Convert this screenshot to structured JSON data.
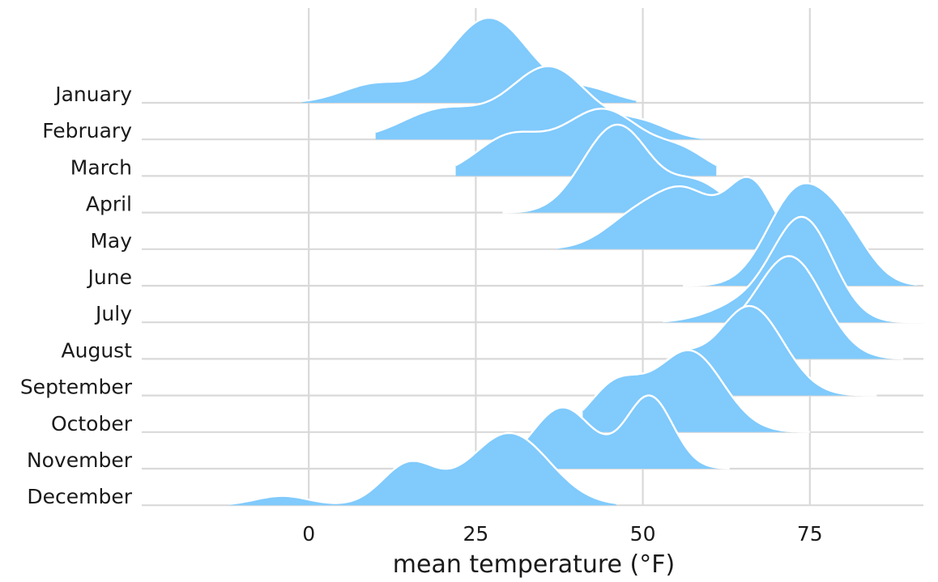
{
  "chart_data": {
    "type": "ridgeline",
    "title": "",
    "xlabel": "mean temperature (°F)",
    "ylabel": "",
    "xlim": [
      -25,
      92
    ],
    "x_ticks": [
      0,
      25,
      50,
      75
    ],
    "x_tick_labels": [
      "0",
      "25",
      "50",
      "75"
    ],
    "grid": "vertical",
    "fill_color": "#80CAFC",
    "outline_color": "#ffffff",
    "gridline_color": "#D9D9D9",
    "series": [
      {
        "name": "January",
        "peaks": [
          {
            "mu": 10,
            "sd": 5,
            "h": 0.22
          },
          {
            "mu": 27,
            "sd": 6,
            "h": 1.0
          },
          {
            "mu": 42,
            "sd": 4,
            "h": 0.15
          }
        ],
        "range": [
          -1,
          49
        ]
      },
      {
        "name": "February",
        "peaks": [
          {
            "mu": 20,
            "sd": 6,
            "h": 0.35
          },
          {
            "mu": 36,
            "sd": 6,
            "h": 0.85
          },
          {
            "mu": 50,
            "sd": 4,
            "h": 0.18
          }
        ],
        "range": [
          10,
          59
        ]
      },
      {
        "name": "March",
        "peaks": [
          {
            "mu": 30,
            "sd": 5,
            "h": 0.45
          },
          {
            "mu": 44,
            "sd": 6,
            "h": 0.78
          },
          {
            "mu": 56,
            "sd": 4,
            "h": 0.25
          }
        ],
        "range": [
          22,
          61
        ]
      },
      {
        "name": "April",
        "peaks": [
          {
            "mu": 42,
            "sd": 4,
            "h": 0.25
          },
          {
            "mu": 47,
            "sd": 4.5,
            "h": 0.9
          },
          {
            "mu": 58,
            "sd": 4,
            "h": 0.35
          }
        ],
        "range": [
          29,
          64
        ]
      },
      {
        "name": "May",
        "peaks": [
          {
            "mu": 50,
            "sd": 5,
            "h": 0.45
          },
          {
            "mu": 57,
            "sd": 4,
            "h": 0.52
          },
          {
            "mu": 66,
            "sd": 3.5,
            "h": 0.8
          }
        ],
        "range": [
          37,
          70
        ]
      },
      {
        "name": "June",
        "peaks": [
          {
            "mu": 73,
            "sd": 4.5,
            "h": 1.05
          },
          {
            "mu": 80,
            "sd": 4,
            "h": 0.55
          }
        ],
        "range": [
          56,
          91
        ]
      },
      {
        "name": "July",
        "peaks": [
          {
            "mu": 65,
            "sd": 5,
            "h": 0.2
          },
          {
            "mu": 74,
            "sd": 4.5,
            "h": 1.2
          }
        ],
        "range": [
          53,
          92
        ]
      },
      {
        "name": "August",
        "peaks": [
          {
            "mu": 62,
            "sd": 4,
            "h": 0.2
          },
          {
            "mu": 72,
            "sd": 5,
            "h": 1.2
          }
        ],
        "range": [
          62,
          89
        ]
      },
      {
        "name": "September",
        "peaks": [
          {
            "mu": 55,
            "sd": 3.5,
            "h": 0.4
          },
          {
            "mu": 66,
            "sd": 5,
            "h": 1.05
          }
        ],
        "range": [
          51,
          85
        ]
      },
      {
        "name": "October",
        "peaks": [
          {
            "mu": 46,
            "sd": 4,
            "h": 0.55
          },
          {
            "mu": 57,
            "sd": 5,
            "h": 0.95
          }
        ],
        "range": [
          41,
          75
        ]
      },
      {
        "name": "November",
        "peaks": [
          {
            "mu": 38,
            "sd": 4.5,
            "h": 0.72
          },
          {
            "mu": 51,
            "sd": 3.5,
            "h": 0.85
          }
        ],
        "range": [
          19,
          63
        ]
      },
      {
        "name": "December",
        "peaks": [
          {
            "mu": -4,
            "sd": 4,
            "h": 0.11
          },
          {
            "mu": 15,
            "sd": 4,
            "h": 0.48
          },
          {
            "mu": 30,
            "sd": 6,
            "h": 0.85
          }
        ],
        "range": [
          -12,
          46
        ]
      }
    ]
  }
}
